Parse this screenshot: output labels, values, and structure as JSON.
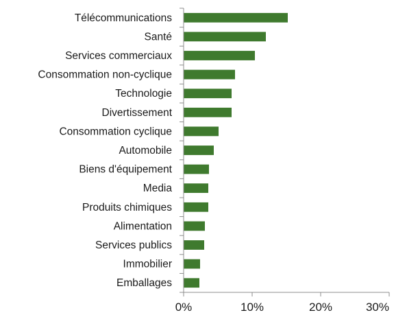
{
  "chart_data": {
    "type": "bar",
    "orientation": "horizontal",
    "categories": [
      "Télécommunications",
      "Santé",
      "Services commerciaux",
      "Consommation non-cyclique",
      "Technologie",
      "Divertissement",
      "Consommation cyclique",
      "Automobile",
      "Biens d'équipement",
      "Media",
      "Produits chimiques",
      "Alimentation",
      "Services publics",
      "Immobilier",
      "Emballages"
    ],
    "values": [
      15.2,
      12.0,
      10.4,
      7.5,
      7.0,
      7.0,
      5.1,
      4.4,
      3.7,
      3.6,
      3.6,
      3.1,
      3.0,
      2.4,
      2.3
    ],
    "xlim": [
      0,
      30
    ],
    "x_ticks": [
      0,
      10,
      20,
      30
    ],
    "x_tick_labels": [
      "0%",
      "10%",
      "20%",
      "30%"
    ],
    "title": "",
    "xlabel": "",
    "ylabel": "",
    "grid": false,
    "bar_color": "#3f7a2e",
    "axis_color": "#8c8c8c"
  }
}
